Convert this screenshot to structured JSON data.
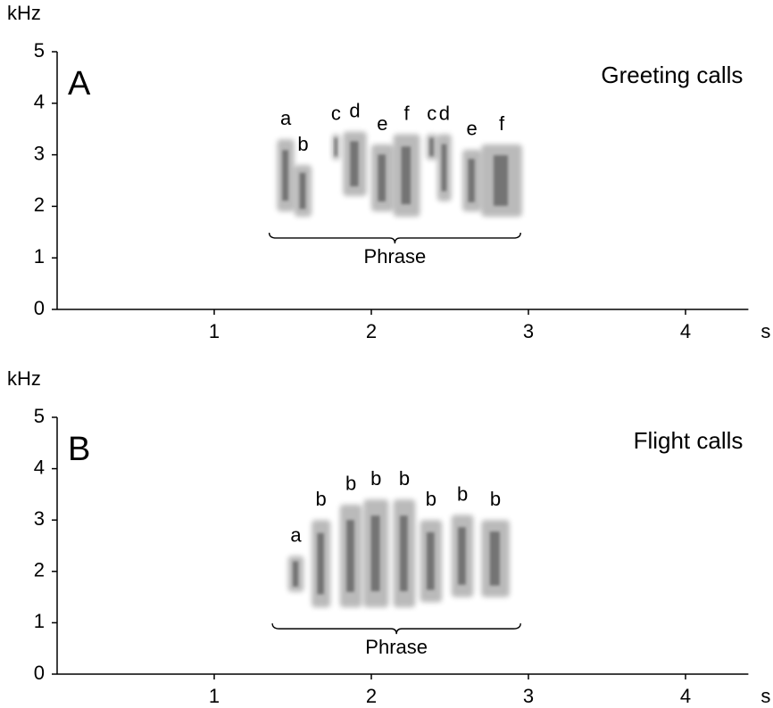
{
  "chart_data": [
    {
      "type": "spectrogram",
      "panel": "A",
      "title": "Greeting calls",
      "x_label": "s",
      "y_label": "kHz",
      "xlim": [
        0,
        4.4
      ],
      "ylim": [
        0,
        5
      ],
      "xticks": [
        1,
        2,
        3,
        4
      ],
      "yticks": [
        0,
        1,
        2,
        3,
        4,
        5
      ],
      "color": "#3a3a3a",
      "syllables": [
        {
          "label": "a",
          "start": 1.4,
          "end": 1.51,
          "low": 1.9,
          "high": 3.3
        },
        {
          "label": "b",
          "start": 1.51,
          "end": 1.62,
          "low": 1.8,
          "high": 2.8
        },
        {
          "label": "c",
          "start": 1.75,
          "end": 1.8,
          "low": 2.9,
          "high": 3.4
        },
        {
          "label": "d",
          "start": 1.82,
          "end": 1.97,
          "low": 2.2,
          "high": 3.45
        },
        {
          "label": "e",
          "start": 2.0,
          "end": 2.14,
          "low": 1.9,
          "high": 3.2
        },
        {
          "label": "f",
          "start": 2.14,
          "end": 2.31,
          "low": 1.8,
          "high": 3.4
        },
        {
          "label": "c",
          "start": 2.35,
          "end": 2.42,
          "low": 2.9,
          "high": 3.4
        },
        {
          "label": "d",
          "start": 2.42,
          "end": 2.51,
          "low": 2.1,
          "high": 3.4
        },
        {
          "label": "e",
          "start": 2.58,
          "end": 2.7,
          "low": 1.9,
          "high": 3.1
        },
        {
          "label": "f",
          "start": 2.7,
          "end": 2.96,
          "low": 1.8,
          "high": 3.2
        }
      ],
      "phrase": {
        "label": "Phrase",
        "start": 1.35,
        "end": 2.95
      }
    },
    {
      "type": "spectrogram",
      "panel": "B",
      "title": "Flight calls",
      "x_label": "s",
      "y_label": "kHz",
      "xlim": [
        0,
        4.4
      ],
      "ylim": [
        0,
        5
      ],
      "xticks": [
        1,
        2,
        3,
        4
      ],
      "yticks": [
        0,
        1,
        2,
        3,
        4,
        5
      ],
      "color": "#3a3a3a",
      "syllables": [
        {
          "label": "a",
          "start": 1.47,
          "end": 1.57,
          "low": 1.6,
          "high": 2.3
        },
        {
          "label": "b",
          "start": 1.62,
          "end": 1.74,
          "low": 1.3,
          "high": 3.0
        },
        {
          "label": "b",
          "start": 1.8,
          "end": 1.94,
          "low": 1.3,
          "high": 3.3
        },
        {
          "label": "b",
          "start": 1.95,
          "end": 2.11,
          "low": 1.3,
          "high": 3.4
        },
        {
          "label": "b",
          "start": 2.14,
          "end": 2.28,
          "low": 1.3,
          "high": 3.4
        },
        {
          "label": "b",
          "start": 2.31,
          "end": 2.45,
          "low": 1.4,
          "high": 3.0
        },
        {
          "label": "b",
          "start": 2.51,
          "end": 2.65,
          "low": 1.5,
          "high": 3.1
        },
        {
          "label": "b",
          "start": 2.7,
          "end": 2.88,
          "low": 1.5,
          "high": 3.0
        }
      ],
      "phrase": {
        "label": "Phrase",
        "start": 1.37,
        "end": 2.95
      }
    }
  ]
}
